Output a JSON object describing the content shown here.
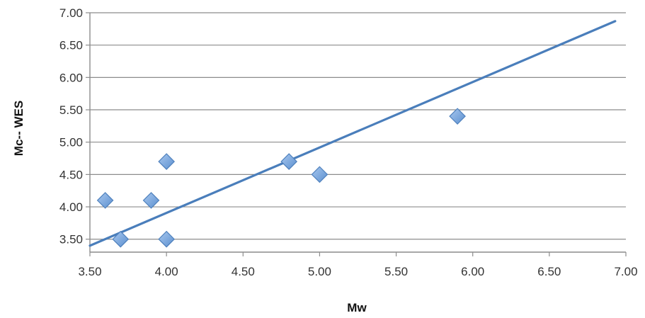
{
  "chart_data": {
    "type": "scatter",
    "xlabel": "Mw",
    "ylabel": "Mc-- WES",
    "xlim": [
      3.5,
      7.0
    ],
    "ylim": [
      3.3,
      7.0
    ],
    "xticks": [
      "3.50",
      "4.00",
      "4.50",
      "5.00",
      "5.50",
      "6.00",
      "6.50",
      "7.00"
    ],
    "yticks": [
      "3.50",
      "4.00",
      "4.50",
      "5.00",
      "5.50",
      "6.00",
      "6.50",
      "7.00"
    ],
    "grid": "horizontal",
    "points": [
      {
        "x": 3.6,
        "y": 4.1
      },
      {
        "x": 3.7,
        "y": 3.5
      },
      {
        "x": 3.9,
        "y": 4.1
      },
      {
        "x": 4.0,
        "y": 4.7
      },
      {
        "x": 4.0,
        "y": 3.5
      },
      {
        "x": 4.8,
        "y": 4.7
      },
      {
        "x": 5.0,
        "y": 4.5
      },
      {
        "x": 5.9,
        "y": 5.4
      }
    ],
    "trendline": {
      "type": "linear",
      "from": {
        "x": 3.5,
        "y": 3.4
      },
      "to": {
        "x": 6.93,
        "y": 6.87
      }
    },
    "colors": {
      "marker_fill": "#6f9fd8",
      "marker_stroke": "#4f81bd",
      "trendline": "#4a7ebb"
    }
  }
}
